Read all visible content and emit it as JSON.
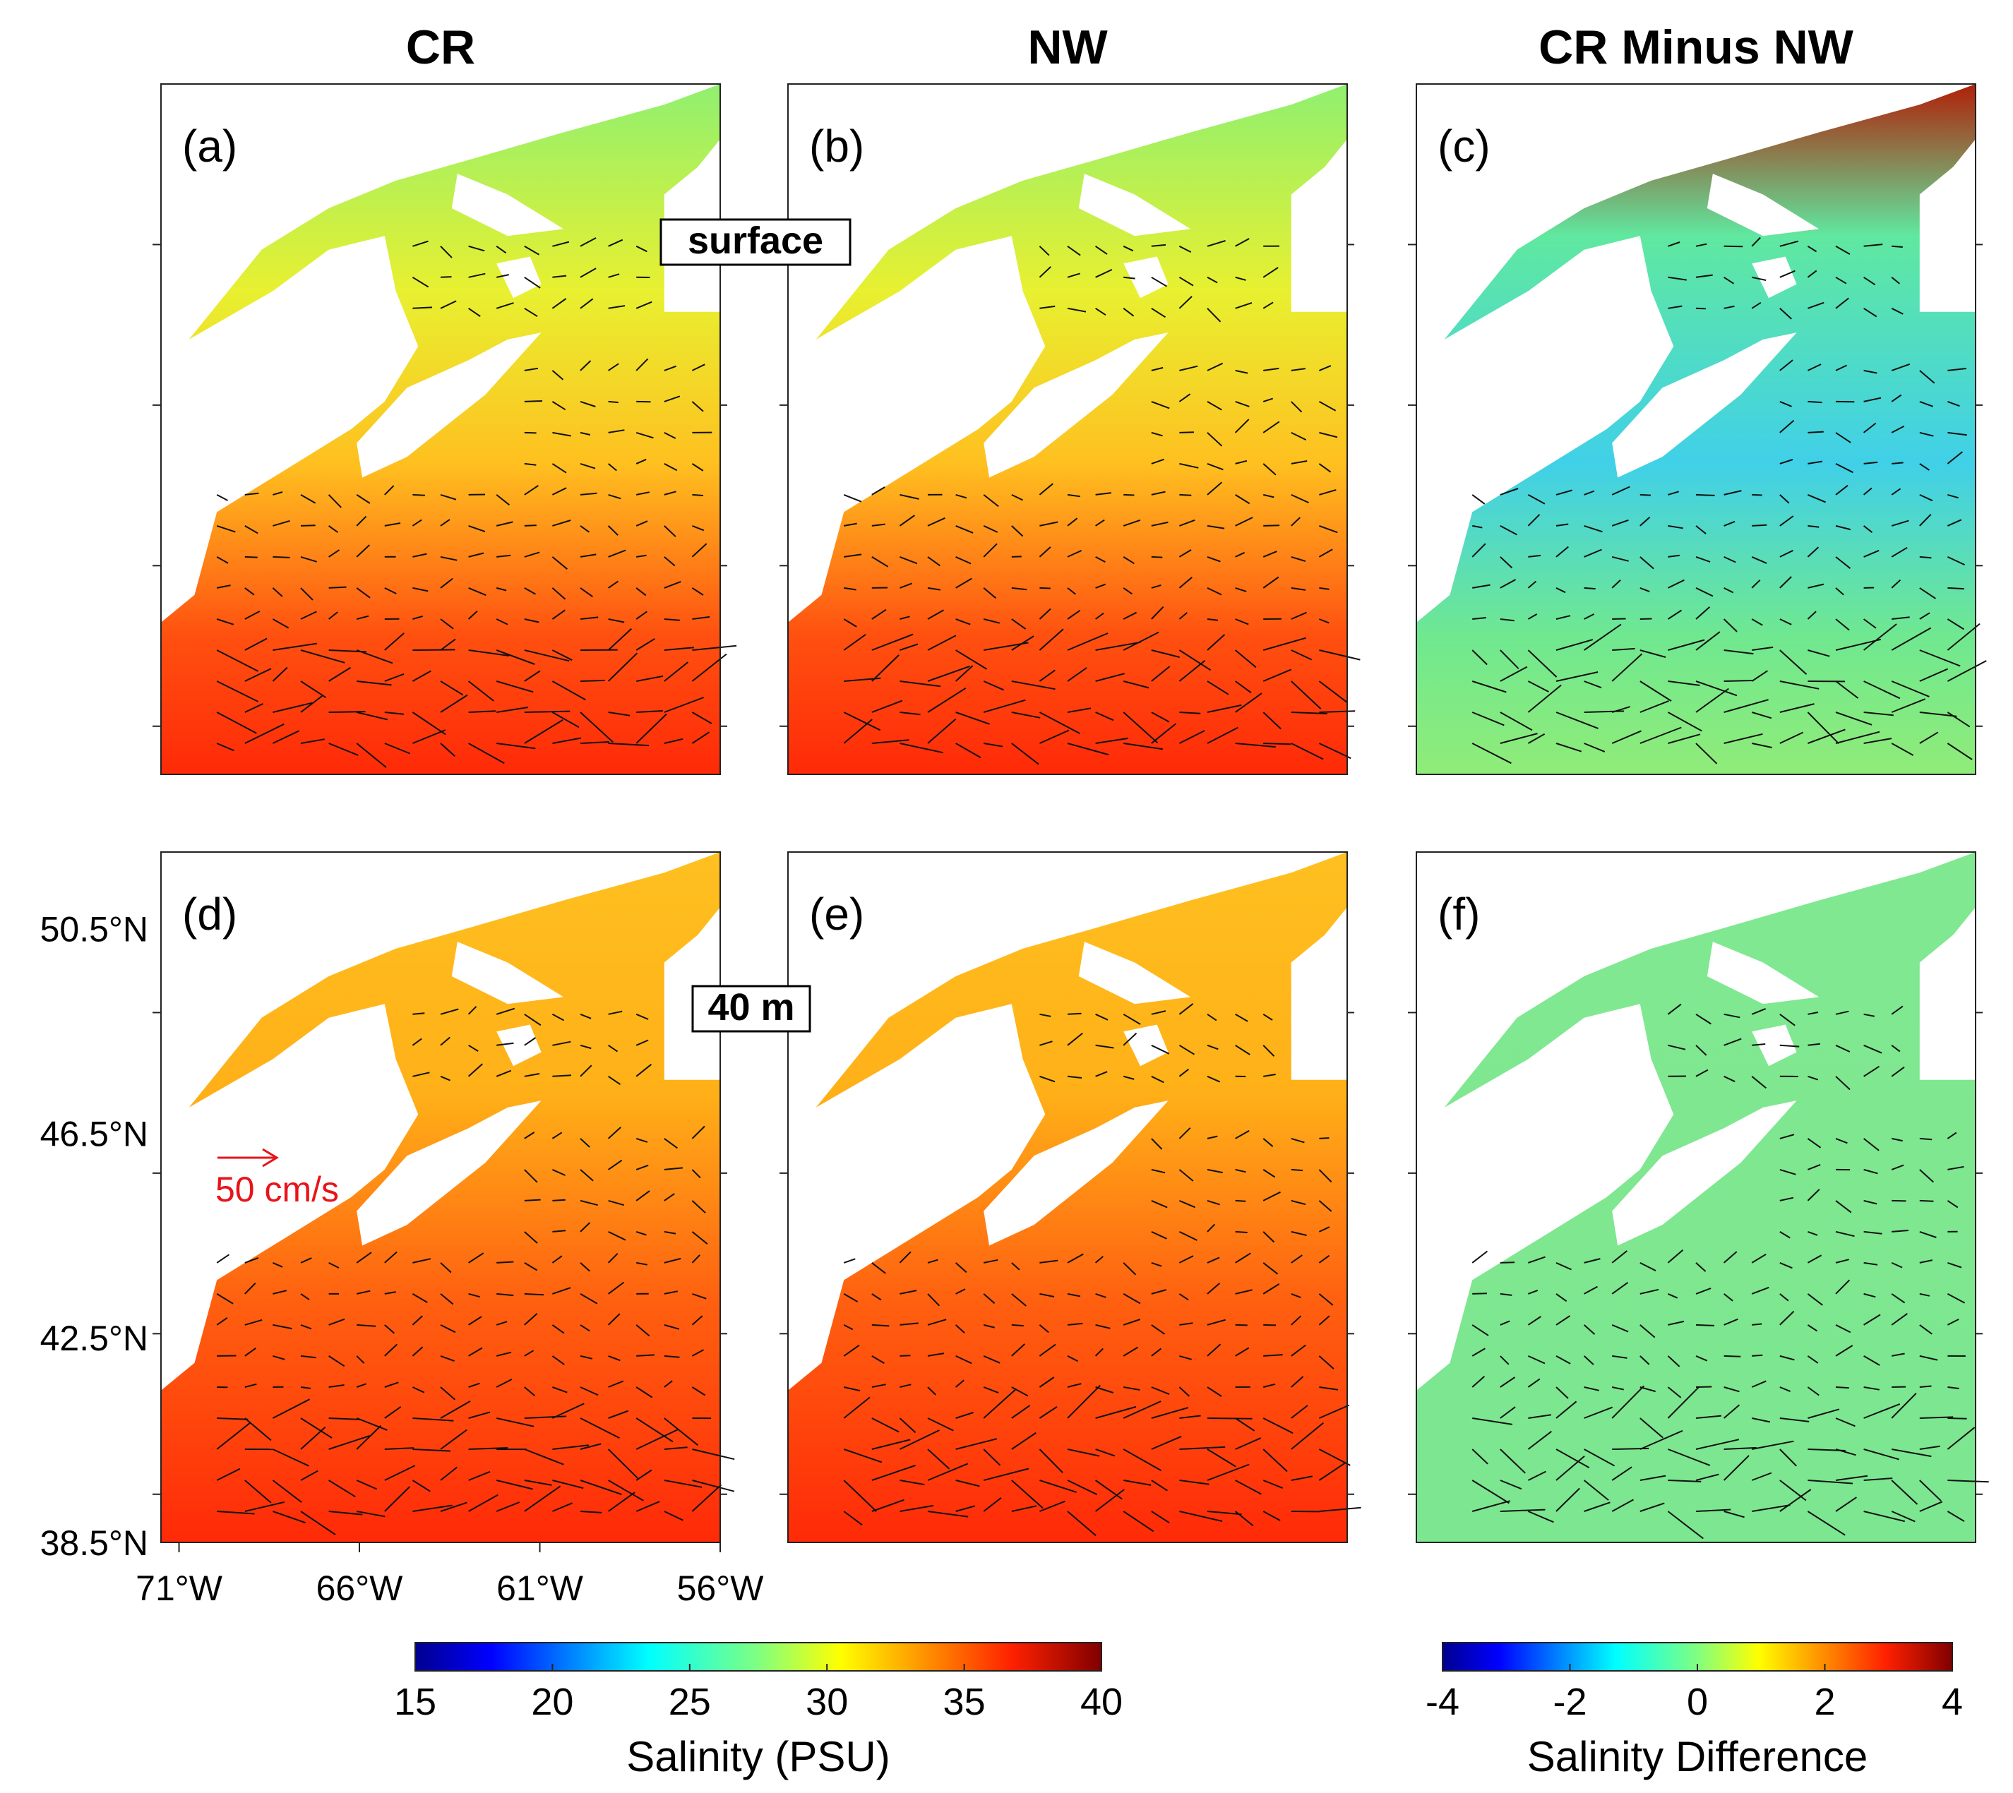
{
  "chart_data": {
    "type": "heatmap",
    "description_columns": [
      "CR",
      "NW",
      "CR Minus NW"
    ],
    "depth_labels": [
      "surface",
      "40 m"
    ],
    "panels": [
      {
        "label": "(a)",
        "column": "CR",
        "depth": "surface",
        "field": "salinity"
      },
      {
        "label": "(b)",
        "column": "NW",
        "depth": "surface",
        "field": "salinity"
      },
      {
        "label": "(c)",
        "column": "CR Minus NW",
        "depth": "surface",
        "field": "difference"
      },
      {
        "label": "(d)",
        "column": "CR",
        "depth": "40 m",
        "field": "salinity"
      },
      {
        "label": "(e)",
        "column": "NW",
        "depth": "40 m",
        "field": "salinity"
      },
      {
        "label": "(f)",
        "column": "CR Minus NW",
        "depth": "40 m",
        "field": "difference"
      }
    ],
    "x_axis": {
      "ticks": [
        "71°W",
        "66°W",
        "61°W",
        "56°W"
      ],
      "values": [
        -71,
        -66,
        -61,
        -56
      ],
      "range": [
        -71.5,
        -56
      ]
    },
    "y_axis": {
      "ticks": [
        "50.5°N",
        "46.5°N",
        "42.5°N",
        "38.5°N"
      ],
      "values": [
        50.5,
        46.5,
        42.5,
        38.5
      ],
      "range": [
        38.5,
        52.0
      ]
    },
    "reference_vector": {
      "label": "50 cm/s",
      "speed_cm_s": 50,
      "color": "#e8141a"
    },
    "colorbars": [
      {
        "label": "Salinity (PSU)",
        "min": 15,
        "max": 40,
        "ticks": [
          "15",
          "20",
          "25",
          "30",
          "35",
          "40"
        ],
        "colormap": "jet"
      },
      {
        "label": "Salinity Difference",
        "min": -4,
        "max": 4,
        "ticks": [
          "-4",
          "-2",
          "0",
          "2",
          "4"
        ],
        "colormap": "jet"
      }
    ],
    "colors": {
      "arrow": "#111111",
      "land": "#ffffff",
      "ref_arrow": "#e8141a"
    }
  }
}
